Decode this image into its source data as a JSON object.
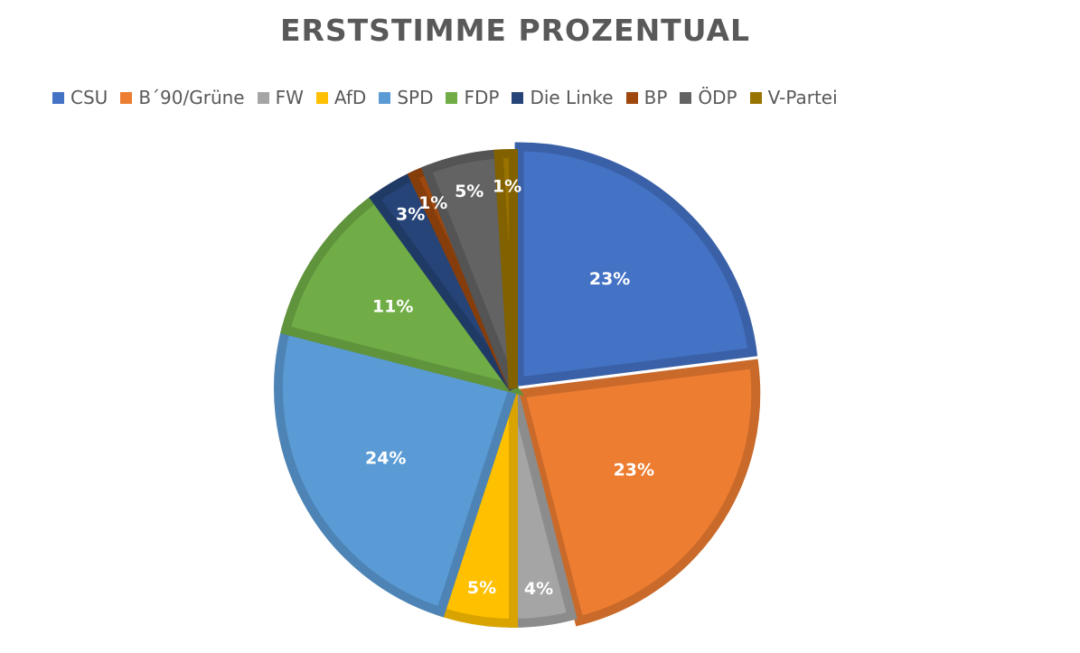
{
  "chart_data": {
    "type": "pie",
    "title": "ERSTSTIMME PROZENTUAL",
    "legend_position": "top",
    "categories": [
      "CSU",
      "B´90/Grüne",
      "FW",
      "AfD",
      "SPD",
      "FDP",
      "Die Linke",
      "BP",
      "ÖDP",
      "V-Partei"
    ],
    "values": [
      23,
      23,
      4,
      5,
      24,
      11,
      3,
      1,
      5,
      1
    ],
    "labels": [
      "23%",
      "23%",
      "4%",
      "5%",
      "24%",
      "11%",
      "3%",
      "1%",
      "5%",
      "1%"
    ],
    "colors": [
      "#4472C4",
      "#ED7D31",
      "#A5A5A5",
      "#FFC000",
      "#5B9BD5",
      "#70AD47",
      "#264478",
      "#9E480E",
      "#636363",
      "#997300"
    ]
  }
}
